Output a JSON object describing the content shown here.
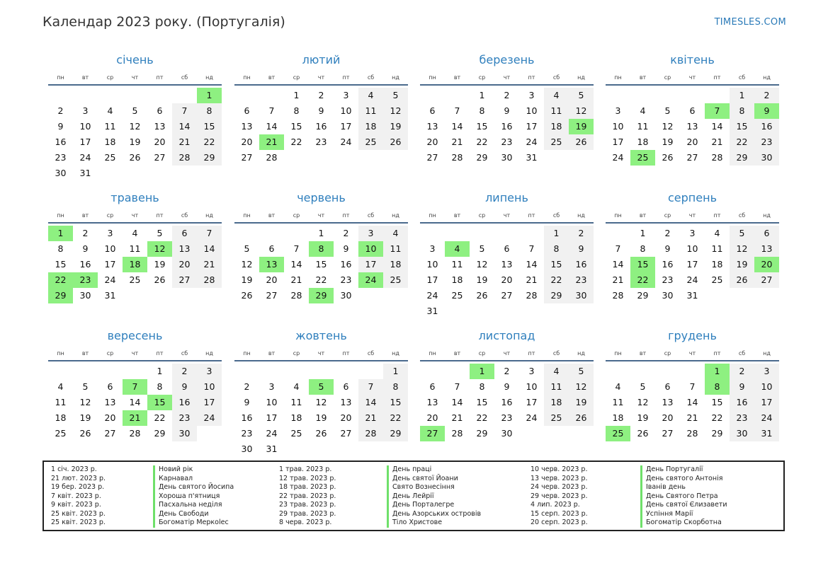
{
  "header": {
    "title": "Календар 2023 року. (Португалія)",
    "site": "TIMESLES.COM"
  },
  "weekdays": [
    "пн",
    "вт",
    "ср",
    "чт",
    "пт",
    "сб",
    "нд"
  ],
  "colors": {
    "accent": "#2f7fbd",
    "holiday": "#8ef081",
    "weekend": "#f1f1f1"
  },
  "months": [
    {
      "name": "січень",
      "offset": 6,
      "days": 31,
      "holidays": [
        1
      ]
    },
    {
      "name": "лютий",
      "offset": 2,
      "days": 28,
      "holidays": [
        21
      ]
    },
    {
      "name": "березень",
      "offset": 2,
      "days": 31,
      "holidays": [
        19
      ]
    },
    {
      "name": "квітень",
      "offset": 5,
      "days": 30,
      "holidays": [
        7,
        9,
        25
      ]
    },
    {
      "name": "травень",
      "offset": 0,
      "days": 31,
      "holidays": [
        1,
        12,
        18,
        22,
        23,
        29
      ]
    },
    {
      "name": "червень",
      "offset": 3,
      "days": 30,
      "holidays": [
        8,
        10,
        13,
        24,
        29
      ]
    },
    {
      "name": "липень",
      "offset": 5,
      "days": 31,
      "holidays": [
        4
      ]
    },
    {
      "name": "серпень",
      "offset": 1,
      "days": 31,
      "holidays": [
        15,
        20,
        22
      ]
    },
    {
      "name": "вересень",
      "offset": 4,
      "days": 30,
      "holidays": [
        7,
        15,
        21
      ]
    },
    {
      "name": "жовтень",
      "offset": 6,
      "days": 31,
      "holidays": [
        5
      ]
    },
    {
      "name": "листопад",
      "offset": 2,
      "days": 30,
      "holidays": [
        1,
        27
      ]
    },
    {
      "name": "грудень",
      "offset": 4,
      "days": 31,
      "holidays": [
        1,
        8,
        25
      ]
    }
  ],
  "holiday_list": [
    [
      {
        "date": "1 січ. 2023 р.",
        "name": "Новий рік"
      },
      {
        "date": "21 лют. 2023 р.",
        "name": "Карнавал"
      },
      {
        "date": "19 бер. 2023 р.",
        "name": "День святого Йосипа"
      },
      {
        "date": "7 квіт. 2023 р.",
        "name": "Хороша п'ятниця"
      },
      {
        "date": "9 квіт. 2023 р.",
        "name": "Пасхальна неділя"
      },
      {
        "date": "25 квіт. 2023 р.",
        "name": "День Свободи"
      },
      {
        "date": "25 квіт. 2023 р.",
        "name": "Богоматір Меркolес"
      }
    ],
    [
      {
        "date": "1 трав. 2023 р.",
        "name": "День праці"
      },
      {
        "date": "12 трав. 2023 р.",
        "name": "День святої Йоани"
      },
      {
        "date": "18 трав. 2023 р.",
        "name": "Свято Вознесіння"
      },
      {
        "date": "22 трав. 2023 р.",
        "name": "День Лейрії"
      },
      {
        "date": "23 трав. 2023 р.",
        "name": "День Порталегре"
      },
      {
        "date": "29 трав. 2023 р.",
        "name": "День Азорських островів"
      },
      {
        "date": "8 черв. 2023 р.",
        "name": "Тіло Христове"
      }
    ],
    [
      {
        "date": "10 черв. 2023 р.",
        "name": "День Португалії"
      },
      {
        "date": "13 черв. 2023 р.",
        "name": "День святого Антонія"
      },
      {
        "date": "24 черв. 2023 р.",
        "name": "Іванів день"
      },
      {
        "date": "29 черв. 2023 р.",
        "name": "День Святого Петра"
      },
      {
        "date": "4 лип. 2023 р.",
        "name": "День святої Єлизавети"
      },
      {
        "date": "15 серп. 2023 р.",
        "name": "Успіння Марії"
      },
      {
        "date": "20 серп. 2023 р.",
        "name": "Богоматір Скорботна"
      }
    ]
  ]
}
